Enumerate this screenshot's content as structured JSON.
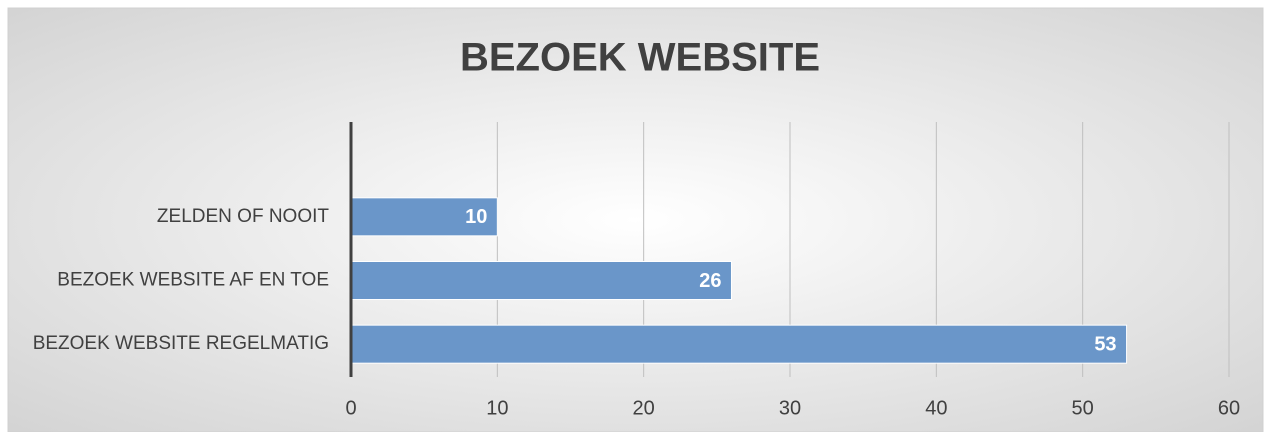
{
  "chart_data": {
    "type": "bar",
    "orientation": "horizontal",
    "title": "BEZOEK WEBSITE",
    "categories": [
      "ZELDEN OF NOOIT",
      "BEZOEK WEBSITE AF EN TOE",
      "BEZOEK WEBSITE REGELMATIG"
    ],
    "values": [
      10,
      26,
      53
    ],
    "color": "#6a96c9",
    "xlim": [
      0,
      60
    ],
    "xticks": [
      0,
      10,
      20,
      30,
      40,
      50,
      60
    ],
    "grid": true
  }
}
